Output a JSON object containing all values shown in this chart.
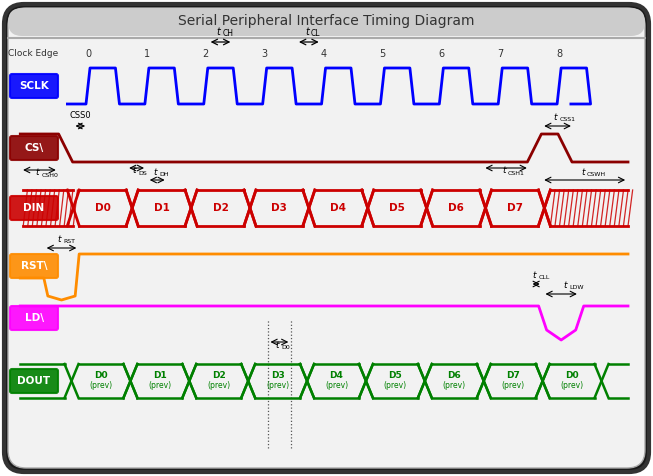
{
  "title": "Serial Peripheral Interface Timing Diagram",
  "signal_colors": {
    "SCLK": "#0000ff",
    "CS\\": "#8b0000",
    "DIN": "#cc0000",
    "RST\\": "#ff8c00",
    "LD\\": "#ff00ff",
    "DOUT": "#008000"
  },
  "clock_edges": [
    0,
    1,
    2,
    3,
    4,
    5,
    6,
    7
  ],
  "num_bits": 8,
  "dout_labels": [
    "D0\n(prev)",
    "D1\n(prev)",
    "D2\n(prev)",
    "D3\n(prev)",
    "D4\n(prev)",
    "D5\n(prev)",
    "D6\n(prev)",
    "D7\n(prev)",
    "D0\n(prev)"
  ],
  "din_labels": [
    "D0",
    "D1",
    "D2",
    "D3",
    "D4",
    "D5",
    "D6",
    "D7"
  ]
}
